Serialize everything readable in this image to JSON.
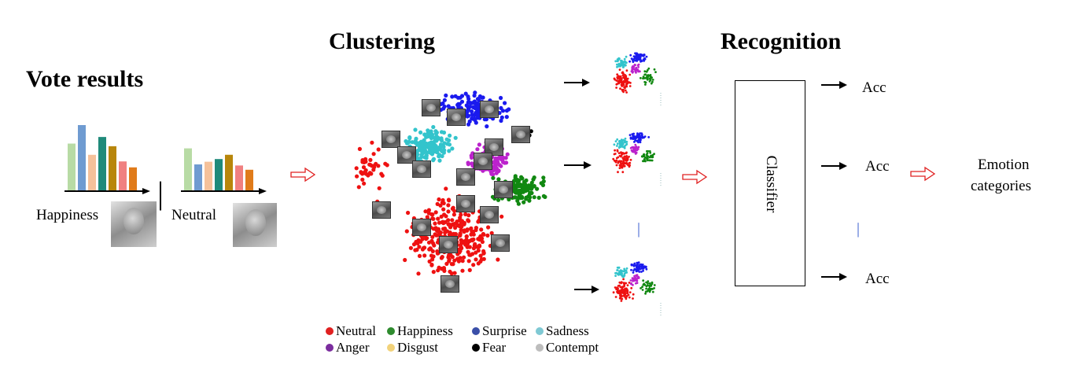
{
  "headings": {
    "vote_results": "Vote results",
    "clustering": "Clustering",
    "recognition": "Recognition"
  },
  "vote": {
    "happiness_label": "Happiness",
    "neutral_label": "Neutral",
    "separator": "||",
    "bar_colors": [
      "#b8dba5",
      "#6f9bd1",
      "#f5c19a",
      "#1f8a7a",
      "#b8860b",
      "#f08080",
      "#e07b1a"
    ],
    "happiness_bars": [
      0.72,
      1.0,
      0.55,
      0.82,
      0.68,
      0.45,
      0.36
    ],
    "neutral_bars": [
      0.8,
      0.5,
      0.55,
      0.6,
      0.68,
      0.48,
      0.4
    ]
  },
  "classifier": {
    "label": "Classifier"
  },
  "outputs": [
    "Acc",
    "Acc",
    "Acc"
  ],
  "equivalence_mark": "||",
  "final": {
    "line1": "Emotion",
    "line2": "categories"
  },
  "legend": [
    {
      "label": "Neutral",
      "color": "#e02020"
    },
    {
      "label": "Happiness",
      "color": "#2e8b2e"
    },
    {
      "label": "Surprise",
      "color": "#3a4fa8"
    },
    {
      "label": "Sadness",
      "color": "#7fc9d4"
    },
    {
      "label": "Anger",
      "color": "#7b2d9e"
    },
    {
      "label": "Disgust",
      "color": "#f2d27a"
    },
    {
      "label": "Fear",
      "color": "#000000"
    },
    {
      "label": "Contempt",
      "color": "#bdbdbd"
    }
  ],
  "cluster_colors": {
    "neutral": "#ee1111",
    "happiness": "#118811",
    "surprise": "#1a1aee",
    "sadness": "#33c4cc",
    "anger": "#bb22cc",
    "fear": "#000000"
  },
  "arrow_color": "#e02020"
}
